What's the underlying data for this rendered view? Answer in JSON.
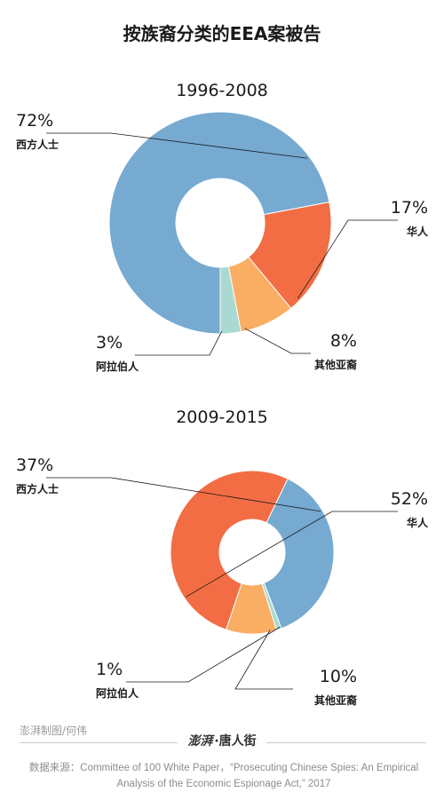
{
  "title": "按族裔分类的EEA案被告",
  "footer": {
    "credit": "澎湃制图/何伟",
    "logo_seal": "澎湃",
    "logo_dot": "·",
    "logo_text": "唐人街",
    "source": "数据来源：Committee of 100 White Paper，“Prosecuting Chinese Spies: An Empirical Analysis of the Economic Espionage Act,” 2017"
  },
  "colors": {
    "western": "#76aad1",
    "chinese": "#f26d44",
    "other_asian": "#f9ae64",
    "arab": "#a9d9d2"
  },
  "chart_data": [
    {
      "type": "pie",
      "donut": true,
      "title": "1996-2008",
      "categories": [
        "西方人士",
        "华人",
        "其他亚裔",
        "阿拉伯人"
      ],
      "values": [
        72,
        17,
        8,
        3
      ],
      "labels": [
        "72%",
        "17%",
        "8%",
        "3%"
      ]
    },
    {
      "type": "pie",
      "donut": true,
      "title": "2009-2015",
      "categories": [
        "西方人士",
        "华人",
        "其他亚裔",
        "阿拉伯人"
      ],
      "values": [
        37,
        52,
        10,
        1
      ],
      "labels": [
        "37%",
        "52%",
        "10%",
        "1%"
      ]
    }
  ]
}
